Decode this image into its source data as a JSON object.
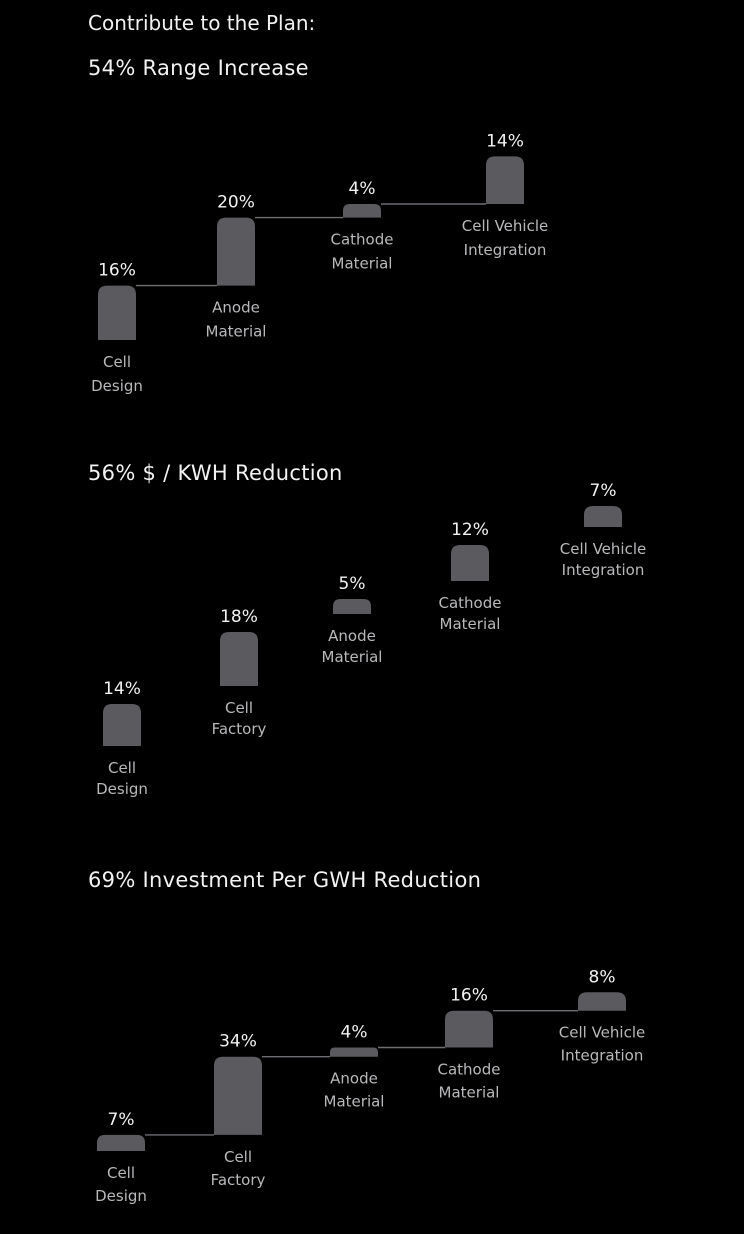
{
  "heading": "Contribute to the Plan:",
  "colors": {
    "background": "#000000",
    "bar": "#5a5a5f",
    "connector": "#6e6e73",
    "value_text": "#f2f2f2",
    "label_text": "#b9b9bc"
  },
  "chart_data": [
    {
      "type": "waterfall",
      "title": "54% Range Increase",
      "categories": [
        [
          "Cell",
          "Design"
        ],
        [
          "Anode",
          "Material"
        ],
        [
          "Cathode",
          "Material"
        ],
        [
          "Cell Vehicle",
          "Integration"
        ]
      ],
      "values": [
        16,
        20,
        4,
        14
      ],
      "value_labels": [
        "16%",
        "20%",
        "4%",
        "14%"
      ],
      "connectors": true
    },
    {
      "type": "waterfall",
      "title": "56% $ / KWH Reduction",
      "categories": [
        [
          "Cell",
          "Design"
        ],
        [
          "Cell",
          "Factory"
        ],
        [
          "Anode",
          "Material"
        ],
        [
          "Cathode",
          "Material"
        ],
        [
          "Cell Vehicle",
          "Integration"
        ]
      ],
      "values": [
        14,
        18,
        5,
        12,
        7
      ],
      "value_labels": [
        "14%",
        "18%",
        "5%",
        "12%",
        "7%"
      ],
      "connectors": false
    },
    {
      "type": "waterfall",
      "title": "69% Investment Per GWH Reduction",
      "categories": [
        [
          "Cell",
          "Design"
        ],
        [
          "Cell",
          "Factory"
        ],
        [
          "Anode",
          "Material"
        ],
        [
          "Cathode",
          "Material"
        ],
        [
          "Cell Vehicle",
          "Integration"
        ]
      ],
      "values": [
        7,
        34,
        4,
        16,
        8
      ],
      "value_labels": [
        "7%",
        "34%",
        "4%",
        "16%",
        "8%"
      ],
      "connectors": true
    }
  ]
}
